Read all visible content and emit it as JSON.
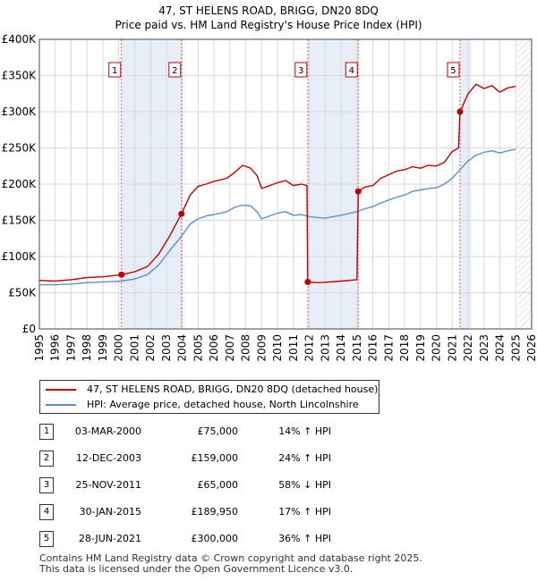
{
  "chart_data": {
    "type": "line",
    "title": "47, ST HELENS ROAD, BRIGG, DN20 8DQ",
    "subtitle": "Price paid vs. HM Land Registry's House Price Index (HPI)",
    "ylim": [
      0,
      400000
    ],
    "xlim": [
      1995,
      2026
    ],
    "y_ticks": [
      {
        "value": 0,
        "label": "£0"
      },
      {
        "value": 50000,
        "label": "£50K"
      },
      {
        "value": 100000,
        "label": "£100K"
      },
      {
        "value": 150000,
        "label": "£150K"
      },
      {
        "value": 200000,
        "label": "£200K"
      },
      {
        "value": 250000,
        "label": "£250K"
      },
      {
        "value": 300000,
        "label": "£300K"
      },
      {
        "value": 350000,
        "label": "£350K"
      },
      {
        "value": 400000,
        "label": "£400K"
      }
    ],
    "x_ticks": [
      "1995",
      "1996",
      "1997",
      "1998",
      "1999",
      "2000",
      "2001",
      "2002",
      "2003",
      "2004",
      "2005",
      "2006",
      "2007",
      "2008",
      "2009",
      "2010",
      "2011",
      "2012",
      "2013",
      "2014",
      "2015",
      "2016",
      "2017",
      "2018",
      "2019",
      "2020",
      "2021",
      "2022",
      "2023",
      "2024",
      "2025",
      "2026"
    ],
    "forecast_from": 2025.1,
    "shaded_spans": [
      [
        2000.17,
        2003.95
      ],
      [
        2011.9,
        2015.08
      ],
      [
        2021.49,
        2022.2
      ]
    ],
    "colors": {
      "property": "#c00000",
      "hpi": "#5b8fd0",
      "shade": "#e8eef8",
      "grid": "#d8d8d8"
    },
    "series": [
      {
        "name": "47, ST HELENS ROAD, BRIGG, DN20 8DQ (detached house)",
        "color": "#c00000",
        "points": [
          [
            1995.0,
            67000
          ],
          [
            1996.0,
            66000
          ],
          [
            1997.0,
            68000
          ],
          [
            1998.0,
            71000
          ],
          [
            1999.0,
            72000
          ],
          [
            2000.17,
            75000
          ],
          [
            2001.0,
            79000
          ],
          [
            2001.8,
            86000
          ],
          [
            2002.5,
            103000
          ],
          [
            2003.2,
            128000
          ],
          [
            2003.95,
            159000
          ],
          [
            2004.5,
            185000
          ],
          [
            2005.0,
            197000
          ],
          [
            2005.5,
            200000
          ],
          [
            2006.0,
            204000
          ],
          [
            2006.8,
            208000
          ],
          [
            2007.3,
            216000
          ],
          [
            2007.8,
            226000
          ],
          [
            2008.3,
            222000
          ],
          [
            2008.7,
            212000
          ],
          [
            2009.0,
            194000
          ],
          [
            2009.5,
            198000
          ],
          [
            2010.0,
            202000
          ],
          [
            2010.5,
            205000
          ],
          [
            2011.0,
            198000
          ],
          [
            2011.5,
            200000
          ],
          [
            2011.85,
            198000
          ],
          [
            2011.9,
            65000
          ],
          [
            2012.5,
            64000
          ],
          [
            2013.0,
            64500
          ],
          [
            2014.0,
            66000
          ],
          [
            2015.0,
            68000
          ],
          [
            2015.08,
            189950
          ],
          [
            2015.5,
            196000
          ],
          [
            2016.0,
            198000
          ],
          [
            2016.5,
            208000
          ],
          [
            2017.0,
            213000
          ],
          [
            2017.5,
            218000
          ],
          [
            2018.0,
            220000
          ],
          [
            2018.5,
            224000
          ],
          [
            2019.0,
            222000
          ],
          [
            2019.5,
            226000
          ],
          [
            2020.0,
            225000
          ],
          [
            2020.5,
            230000
          ],
          [
            2021.0,
            245000
          ],
          [
            2021.4,
            250000
          ],
          [
            2021.49,
            300000
          ],
          [
            2022.0,
            325000
          ],
          [
            2022.5,
            338000
          ],
          [
            2023.0,
            332000
          ],
          [
            2023.5,
            336000
          ],
          [
            2024.0,
            327000
          ],
          [
            2024.5,
            333000
          ],
          [
            2025.0,
            335000
          ]
        ]
      },
      {
        "name": "HPI: Average price, detached house, North Lincolnshire",
        "color": "#5b8fd0",
        "points": [
          [
            1995.0,
            61000
          ],
          [
            1996.0,
            61000
          ],
          [
            1997.0,
            62000
          ],
          [
            1998.0,
            64000
          ],
          [
            1999.0,
            65000
          ],
          [
            2000.17,
            66000
          ],
          [
            2001.0,
            69000
          ],
          [
            2001.8,
            75000
          ],
          [
            2002.5,
            88000
          ],
          [
            2003.2,
            108000
          ],
          [
            2003.95,
            128000
          ],
          [
            2004.5,
            145000
          ],
          [
            2005.0,
            152000
          ],
          [
            2005.5,
            156000
          ],
          [
            2006.0,
            158000
          ],
          [
            2006.8,
            162000
          ],
          [
            2007.3,
            168000
          ],
          [
            2007.8,
            171000
          ],
          [
            2008.3,
            170000
          ],
          [
            2008.7,
            162000
          ],
          [
            2009.0,
            152000
          ],
          [
            2009.5,
            156000
          ],
          [
            2010.0,
            160000
          ],
          [
            2010.5,
            162000
          ],
          [
            2011.0,
            157000
          ],
          [
            2011.5,
            158000
          ],
          [
            2012.0,
            155000
          ],
          [
            2012.5,
            154000
          ],
          [
            2013.0,
            153000
          ],
          [
            2014.0,
            157000
          ],
          [
            2015.0,
            162000
          ],
          [
            2015.5,
            166000
          ],
          [
            2016.0,
            169000
          ],
          [
            2016.5,
            174000
          ],
          [
            2017.0,
            178000
          ],
          [
            2017.5,
            182000
          ],
          [
            2018.0,
            185000
          ],
          [
            2018.5,
            190000
          ],
          [
            2019.0,
            192000
          ],
          [
            2019.5,
            194000
          ],
          [
            2020.0,
            195000
          ],
          [
            2020.5,
            200000
          ],
          [
            2021.0,
            208000
          ],
          [
            2021.49,
            220000
          ],
          [
            2022.0,
            232000
          ],
          [
            2022.5,
            240000
          ],
          [
            2023.0,
            244000
          ],
          [
            2023.5,
            246000
          ],
          [
            2024.0,
            243000
          ],
          [
            2024.5,
            246000
          ],
          [
            2025.0,
            248000
          ]
        ]
      }
    ],
    "sales": [
      {
        "num": "1",
        "year": 2000.17,
        "price": 75000
      },
      {
        "num": "2",
        "year": 2003.95,
        "price": 159000
      },
      {
        "num": "3",
        "year": 2011.9,
        "price": 65000
      },
      {
        "num": "4",
        "year": 2015.08,
        "price": 189950
      },
      {
        "num": "5",
        "year": 2021.49,
        "price": 300000
      }
    ]
  },
  "legend": {
    "property": "47, ST HELENS ROAD, BRIGG, DN20 8DQ (detached house)",
    "hpi": "HPI: Average price, detached house, North Lincolnshire"
  },
  "table": [
    {
      "num": "1",
      "date": "03-MAR-2000",
      "price": "£75,000",
      "hpi": "14% ↑ HPI"
    },
    {
      "num": "2",
      "date": "12-DEC-2003",
      "price": "£159,000",
      "hpi": "24% ↑ HPI"
    },
    {
      "num": "3",
      "date": "25-NOV-2011",
      "price": "£65,000",
      "hpi": "58% ↓ HPI"
    },
    {
      "num": "4",
      "date": "30-JAN-2015",
      "price": "£189,950",
      "hpi": "17% ↑ HPI"
    },
    {
      "num": "5",
      "date": "28-JUN-2021",
      "price": "£300,000",
      "hpi": "36% ↑ HPI"
    }
  ],
  "footer": {
    "line1": "Contains HM Land Registry data © Crown copyright and database right 2025.",
    "line2": "This data is licensed under the Open Government Licence v3.0."
  }
}
